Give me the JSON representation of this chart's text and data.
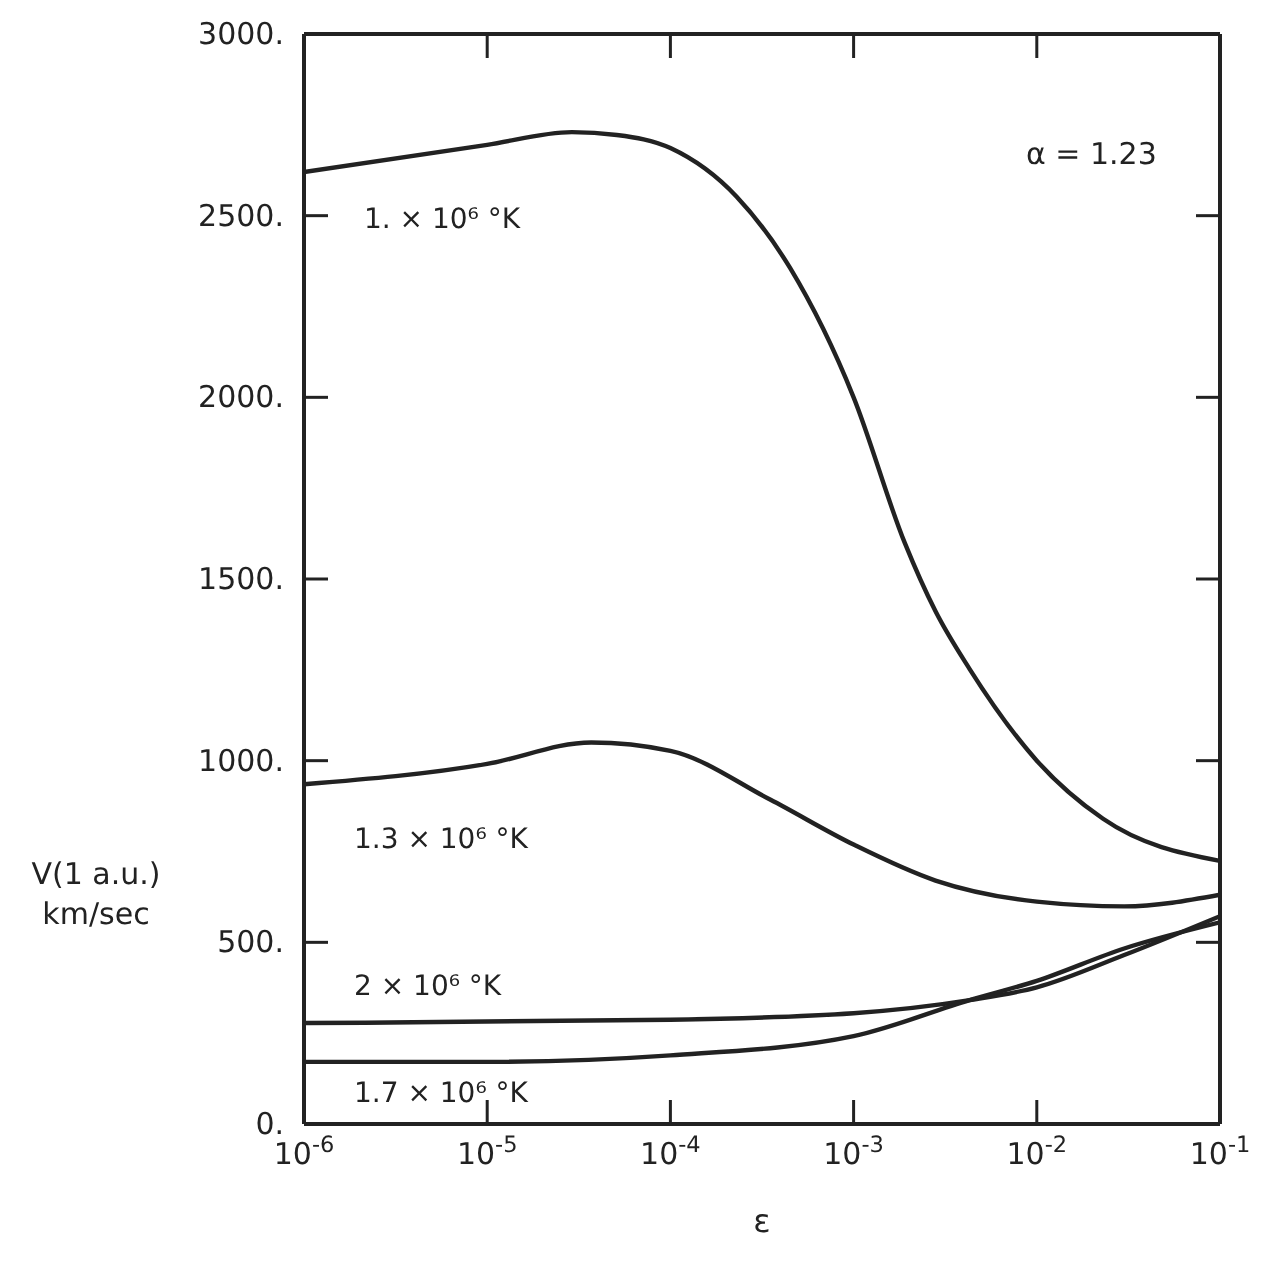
{
  "chart_data": {
    "type": "line",
    "xlabel": "ε",
    "ylabel": "V(1 a.u.)\nkm/sec",
    "log": "x",
    "marker": "none",
    "line_style": "solid",
    "xlim": [
      1e-06,
      0.1
    ],
    "xticks": [
      {
        "value": 1e-06,
        "label": "10$^{-6}$"
      },
      {
        "value": 1e-05,
        "label": "10$^{-5}$"
      },
      {
        "value": 0.0001,
        "label": "10$^{-4}$"
      },
      {
        "value": 0.001,
        "label": "10$^{-3}$"
      },
      {
        "value": 0.01,
        "label": "10$^{-2}$"
      },
      {
        "value": 0.1,
        "label": "10$^{-1}$"
      }
    ],
    "ylim": [
      0,
      3000
    ],
    "yticks": [
      {
        "value": 0,
        "label": "0."
      },
      {
        "value": 500,
        "label": "500."
      },
      {
        "value": 1000,
        "label": "1000."
      },
      {
        "value": 1500,
        "label": "1500."
      },
      {
        "value": 2000,
        "label": "2000."
      },
      {
        "value": 2500,
        "label": "2500."
      },
      {
        "value": 3000,
        "label": "3000."
      }
    ],
    "annotations": [
      "α = 1.23"
    ],
    "series": [
      {
        "name": "1. × 10⁶ °K",
        "color": "#222222",
        "x": [
          1e-06,
          1e-05,
          2.9e-05,
          5.1e-05,
          0.0001,
          0.00023,
          0.00045,
          0.001,
          0.0019,
          0.0028,
          0.0043,
          0.01,
          0.023,
          0.1
        ],
        "values": [
          2620,
          2695,
          2730,
          2722,
          2686,
          2552,
          2356,
          2000,
          1600,
          1411,
          1252,
          1000,
          840,
          724
        ]
      },
      {
        "name": "1.3 × 10⁶ °K",
        "color": "#222222",
        "x": [
          1e-06,
          1e-05,
          3.7e-05,
          0.0001,
          0.00035,
          0.001,
          0.0028,
          0.01,
          0.03,
          0.1
        ],
        "values": [
          935,
          991,
          1050,
          1027,
          893,
          769,
          670,
          612,
          599,
          631
        ]
      },
      {
        "name": "2 × 10⁶ °K",
        "color": "#222222",
        "x": [
          1e-06,
          0.0001,
          0.001,
          0.0043,
          0.01,
          0.03,
          0.1
        ],
        "values": [
          278,
          287,
          305,
          341,
          376,
          465,
          572
        ]
      },
      {
        "name": "1.7 × 10⁶ °K",
        "color": "#222222",
        "x": [
          1e-06,
          1e-05,
          0.0001,
          0.001,
          0.0043,
          0.01,
          0.03,
          0.1
        ],
        "values": [
          171,
          171,
          189,
          242,
          341,
          394,
          483,
          555
        ]
      }
    ]
  }
}
